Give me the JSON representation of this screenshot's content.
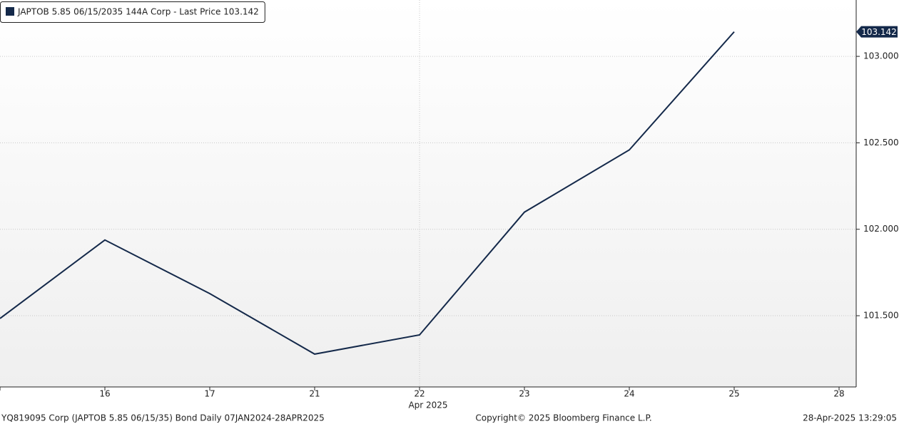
{
  "chart_data": {
    "type": "line",
    "categories": [
      null,
      "16",
      "17",
      "21",
      "22",
      "23",
      "24",
      "25",
      "28"
    ],
    "x_sublabels": [
      null,
      null,
      null,
      null,
      "Apr 2025",
      null,
      null,
      null,
      null
    ],
    "series": [
      {
        "name": "JAPTOB 5.85 06/15/2035 144A Corp - Last Price 103.142",
        "color": "#14294a",
        "values": [
          101.484,
          101.938,
          101.628,
          101.278,
          101.389,
          102.099,
          102.459,
          103.142,
          null
        ]
      }
    ],
    "last_price_label": "103.142",
    "ylim": [
      101.088,
      103.326
    ],
    "yticks": [
      {
        "value": 101.5,
        "label": "101.500"
      },
      {
        "value": 102,
        "label": "102.000"
      },
      {
        "value": 102.5,
        "label": "102.500"
      },
      {
        "value": 103,
        "label": "103.000"
      }
    ],
    "grid": true,
    "legend": "top-left",
    "footer": {
      "left": "YQ819095 Corp (JAPTOB 5.85 06/15/35) Bond  Daily 07JAN2024-28APR2025",
      "center": "Copyright© 2025 Bloomberg Finance L.P.",
      "right": "28-Apr-2025 13:29:05"
    }
  }
}
